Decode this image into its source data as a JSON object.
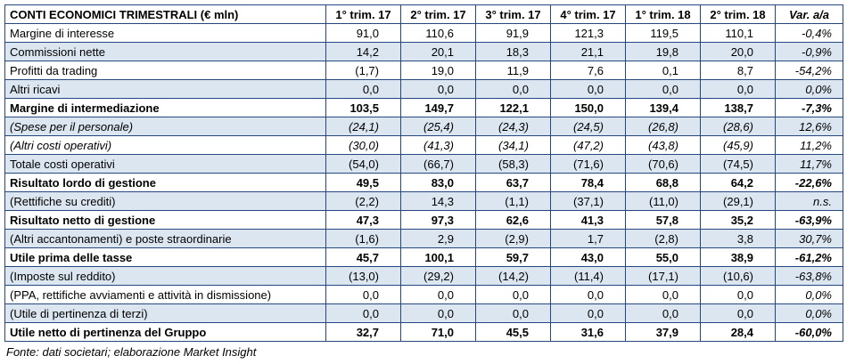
{
  "chart_data": {
    "type": "table",
    "title": "CONTI ECONOMICI TRIMESTRALI (€ mln)",
    "columns": [
      "1° trim. 17",
      "2° trim. 17",
      "3° trim. 17",
      "4° trim. 17",
      "1° trim. 18",
      "2° trim. 18",
      "Var. a/a"
    ],
    "rows": [
      {
        "label": "Margine di interesse",
        "style": "normal",
        "values": [
          "91,0",
          "110,6",
          "91,9",
          "121,3",
          "119,5",
          "110,1",
          "-0,4%"
        ]
      },
      {
        "label": "Commissioni nette",
        "style": "normal",
        "values": [
          "14,2",
          "20,1",
          "18,3",
          "21,1",
          "19,8",
          "20,0",
          "-0,9%"
        ]
      },
      {
        "label": "Profitti da trading",
        "style": "normal",
        "values": [
          "(1,7)",
          "19,0",
          "11,9",
          "7,6",
          "0,1",
          "8,7",
          "-54,2%"
        ]
      },
      {
        "label": "Altri ricavi",
        "style": "normal",
        "values": [
          "0,0",
          "0,0",
          "0,0",
          "0,0",
          "0,0",
          "0,0",
          "0,0%"
        ]
      },
      {
        "label": "Margine di intermediazione",
        "style": "bold",
        "values": [
          "103,5",
          "149,7",
          "122,1",
          "150,0",
          "139,4",
          "138,7",
          "-7,3%"
        ]
      },
      {
        "label": "(Spese per il personale)",
        "style": "italic",
        "values": [
          "(24,1)",
          "(25,4)",
          "(24,3)",
          "(24,5)",
          "(26,8)",
          "(28,6)",
          "12,6%"
        ]
      },
      {
        "label": "(Altri costi operativi)",
        "style": "italic",
        "values": [
          "(30,0)",
          "(41,3)",
          "(34,1)",
          "(47,2)",
          "(43,8)",
          "(45,9)",
          "11,2%"
        ]
      },
      {
        "label": "Totale costi operativi",
        "style": "normal",
        "values": [
          "(54,0)",
          "(66,7)",
          "(58,3)",
          "(71,6)",
          "(70,6)",
          "(74,5)",
          "11,7%"
        ]
      },
      {
        "label": "Risultato lordo di gestione",
        "style": "bold",
        "values": [
          "49,5",
          "83,0",
          "63,7",
          "78,4",
          "68,8",
          "64,2",
          "-22,6%"
        ]
      },
      {
        "label": "(Rettifiche su crediti)",
        "style": "normal",
        "values": [
          "(2,2)",
          "14,3",
          "(1,1)",
          "(37,1)",
          "(11,0)",
          "(29,1)",
          "n.s."
        ]
      },
      {
        "label": "Risultato netto di gestione",
        "style": "bold",
        "values": [
          "47,3",
          "97,3",
          "62,6",
          "41,3",
          "57,8",
          "35,2",
          "-63,9%"
        ]
      },
      {
        "label": "(Altri accantonamenti) e poste straordinarie",
        "style": "normal",
        "values": [
          "(1,6)",
          "2,9",
          "(2,9)",
          "1,7",
          "(2,8)",
          "3,8",
          "30,7%"
        ]
      },
      {
        "label": "Utile prima delle tasse",
        "style": "bold",
        "values": [
          "45,7",
          "100,1",
          "59,7",
          "43,0",
          "55,0",
          "38,9",
          "-61,2%"
        ]
      },
      {
        "label": "(Imposte sul reddito)",
        "style": "normal",
        "values": [
          "(13,0)",
          "(29,2)",
          "(14,2)",
          "(11,4)",
          "(17,1)",
          "(10,6)",
          "-63,8%"
        ]
      },
      {
        "label": "(PPA, rettifiche avviamenti e attività in dismissione)",
        "style": "normal",
        "values": [
          "0,0",
          "0,0",
          "0,0",
          "0,0",
          "0,0",
          "0,0",
          "0,0%"
        ]
      },
      {
        "label": "(Utile di pertinenza di terzi)",
        "style": "normal",
        "values": [
          "0,0",
          "0,0",
          "0,0",
          "0,0",
          "0,0",
          "0,0",
          "0,0%"
        ]
      },
      {
        "label": "Utile netto di pertinenza del Gruppo",
        "style": "bold",
        "values": [
          "32,7",
          "71,0",
          "45,5",
          "31,6",
          "37,9",
          "28,4",
          "-60,0%"
        ]
      }
    ]
  },
  "footer": {
    "source": "Fonte: dati societari; elaborazione Market Insight"
  }
}
